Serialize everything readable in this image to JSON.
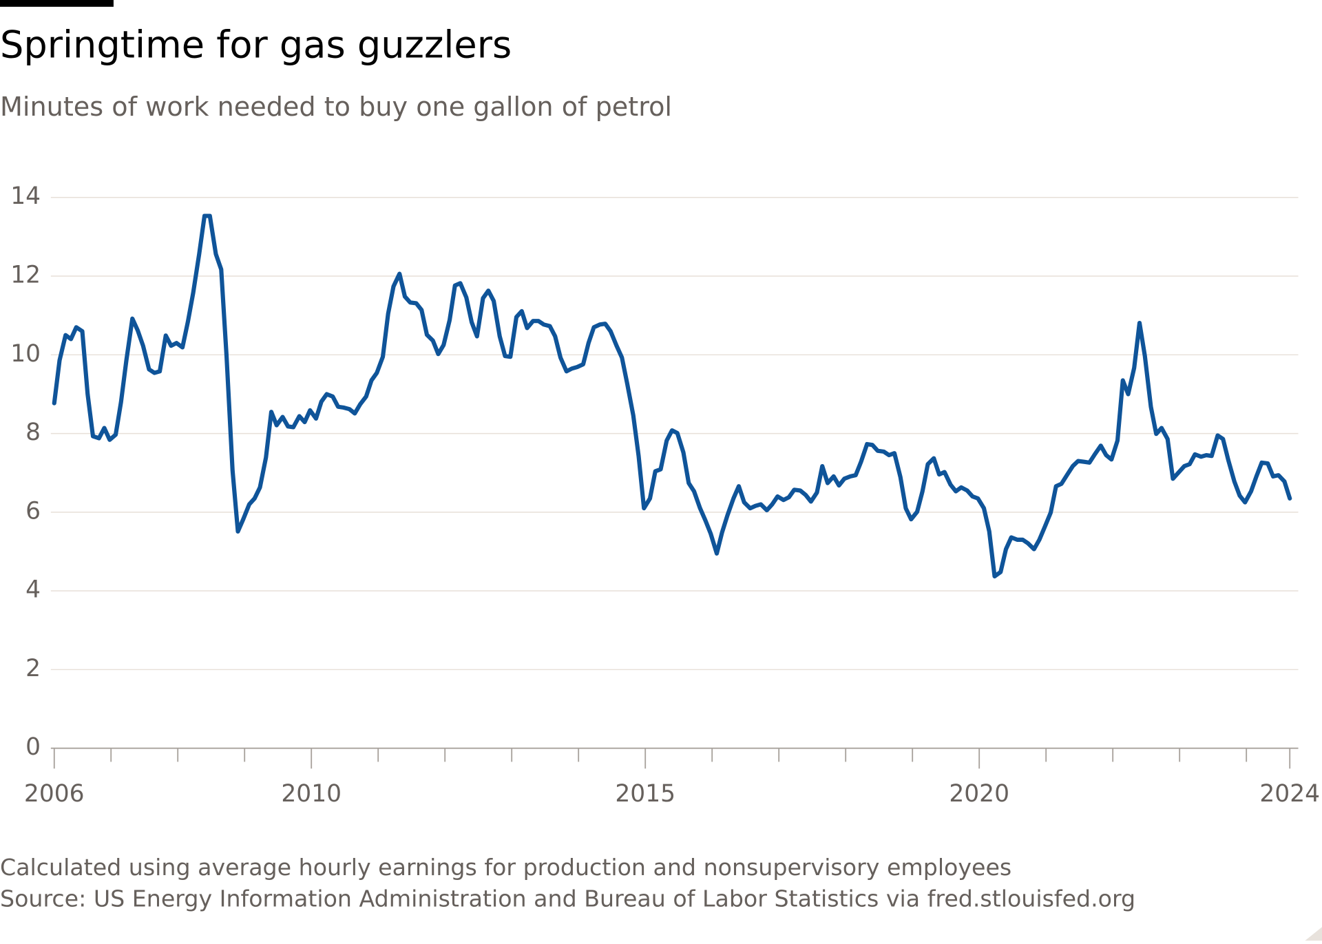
{
  "chart_data": {
    "type": "line",
    "title": "Springtime for gas guzzlers",
    "subtitle": "Minutes of work needed to buy one gallon of petrol",
    "footnote": "Calculated using average hourly earnings for production and nonsupervisory employees",
    "source": "Source: US Energy Information Administration and Bureau of Labor Statistics via fred.stlouisfed.org",
    "xlim": [
      2006.15,
      2024.65
    ],
    "xticks": [
      {
        "value": 2006.15,
        "label": "2006"
      },
      2010,
      2015,
      2020,
      {
        "value": 2024.65,
        "label": "2024"
      }
    ],
    "xminorticks": [
      2007,
      2008,
      2009,
      2011,
      2012,
      2013,
      2014,
      2016,
      2017,
      2018,
      2019,
      2021,
      2022,
      2023,
      2024
    ],
    "ylim": [
      0,
      14
    ],
    "yticks": [
      0,
      2,
      4,
      6,
      8,
      10,
      12,
      14
    ],
    "grid": true,
    "x": [
      2006.15,
      2006.23,
      2006.32,
      2006.4,
      2006.48,
      2006.57,
      2006.65,
      2006.73,
      2006.82,
      2006.9,
      2006.98,
      2007.07,
      2007.15,
      2007.23,
      2007.32,
      2007.4,
      2007.48,
      2007.57,
      2007.65,
      2007.73,
      2007.82,
      2007.9,
      2007.98,
      2008.07,
      2008.15,
      2008.23,
      2008.32,
      2008.4,
      2008.48,
      2008.57,
      2008.65,
      2008.73,
      2008.82,
      2008.9,
      2008.98,
      2009.07,
      2009.15,
      2009.23,
      2009.32,
      2009.4,
      2009.48,
      2009.57,
      2009.65,
      2009.73,
      2009.82,
      2009.9,
      2009.98,
      2010.07,
      2010.15,
      2010.23,
      2010.32,
      2010.4,
      2010.48,
      2010.57,
      2010.65,
      2010.73,
      2010.82,
      2010.9,
      2010.98,
      2011.07,
      2011.15,
      2011.23,
      2011.32,
      2011.4,
      2011.48,
      2011.57,
      2011.65,
      2011.73,
      2011.82,
      2011.9,
      2011.98,
      2012.07,
      2012.15,
      2012.23,
      2012.32,
      2012.4,
      2012.48,
      2012.57,
      2012.65,
      2012.73,
      2012.82,
      2012.9,
      2012.98,
      2013.07,
      2013.15,
      2013.23,
      2013.32,
      2013.4,
      2013.48,
      2013.57,
      2013.65,
      2013.73,
      2013.82,
      2013.9,
      2013.98,
      2014.07,
      2014.15,
      2014.23,
      2014.32,
      2014.4,
      2014.48,
      2014.57,
      2014.65,
      2014.73,
      2014.82,
      2014.9,
      2014.98,
      2015.07,
      2015.15,
      2015.23,
      2015.32,
      2015.4,
      2015.48,
      2015.57,
      2015.65,
      2015.73,
      2015.82,
      2015.9,
      2015.98,
      2016.07,
      2016.15,
      2016.23,
      2016.32,
      2016.4,
      2016.48,
      2016.57,
      2016.65,
      2016.73,
      2016.82,
      2016.9,
      2016.98,
      2017.07,
      2017.15,
      2017.23,
      2017.32,
      2017.4,
      2017.48,
      2017.57,
      2017.65,
      2017.73,
      2017.82,
      2017.9,
      2017.98,
      2018.07,
      2018.15,
      2018.23,
      2018.32,
      2018.4,
      2018.48,
      2018.57,
      2018.65,
      2018.73,
      2018.82,
      2018.9,
      2018.98,
      2019.07,
      2019.15,
      2019.23,
      2019.32,
      2019.4,
      2019.48,
      2019.57,
      2019.65,
      2019.73,
      2019.82,
      2019.9,
      2019.98,
      2020.07,
      2020.15,
      2020.23,
      2020.32,
      2020.4,
      2020.48,
      2020.57,
      2020.65,
      2020.73,
      2020.82,
      2020.9,
      2020.98,
      2021.07,
      2021.15,
      2021.23,
      2021.32,
      2021.4,
      2021.48,
      2021.57,
      2021.65,
      2021.73,
      2021.82,
      2021.9,
      2021.98,
      2022.07,
      2022.15,
      2022.23,
      2022.32,
      2022.4,
      2022.48,
      2022.57,
      2022.65,
      2022.73,
      2022.82,
      2022.9,
      2022.98,
      2023.07,
      2023.15,
      2023.23,
      2023.32,
      2023.4,
      2023.48,
      2023.57,
      2023.65,
      2023.73,
      2023.82,
      2023.9,
      2023.98,
      2024.07,
      2024.15,
      2024.23,
      2024.32,
      2024.4,
      2024.48,
      2024.57,
      2024.65
    ],
    "series": [
      {
        "color": "#0f5499",
        "values": [
          8.77,
          9.86,
          10.5,
          10.4,
          10.7,
          10.6,
          9.0,
          7.93,
          7.88,
          8.14,
          7.84,
          7.97,
          8.8,
          9.86,
          10.92,
          10.62,
          10.23,
          9.63,
          9.54,
          9.58,
          10.49,
          10.23,
          10.3,
          10.19,
          10.83,
          11.57,
          12.56,
          13.53,
          13.53,
          12.56,
          12.17,
          9.97,
          7.06,
          5.51,
          5.82,
          6.2,
          6.35,
          6.63,
          7.39,
          8.55,
          8.21,
          8.42,
          8.18,
          8.16,
          8.44,
          8.29,
          8.59,
          8.38,
          8.81,
          9.0,
          8.94,
          8.68,
          8.66,
          8.62,
          8.51,
          8.74,
          8.94,
          9.35,
          9.54,
          9.95,
          11.05,
          11.74,
          12.06,
          11.48,
          11.33,
          11.31,
          11.14,
          10.51,
          10.36,
          10.02,
          10.25,
          10.88,
          11.76,
          11.82,
          11.46,
          10.83,
          10.47,
          11.44,
          11.63,
          11.37,
          10.47,
          9.97,
          9.95,
          10.96,
          11.11,
          10.68,
          10.86,
          10.86,
          10.77,
          10.73,
          10.47,
          9.93,
          9.58,
          9.65,
          9.69,
          9.76,
          10.3,
          10.7,
          10.77,
          10.79,
          10.6,
          10.23,
          9.93,
          9.26,
          8.46,
          7.43,
          6.1,
          6.35,
          7.04,
          7.09,
          7.82,
          8.08,
          8.01,
          7.52,
          6.74,
          6.53,
          6.1,
          5.79,
          5.45,
          4.95,
          5.49,
          5.92,
          6.35,
          6.66,
          6.25,
          6.1,
          6.16,
          6.2,
          6.05,
          6.2,
          6.4,
          6.31,
          6.38,
          6.57,
          6.55,
          6.44,
          6.27,
          6.5,
          7.17,
          6.74,
          6.91,
          6.68,
          6.85,
          6.91,
          6.94,
          7.28,
          7.73,
          7.71,
          7.56,
          7.54,
          7.45,
          7.5,
          6.89,
          6.1,
          5.82,
          6.01,
          6.53,
          7.22,
          7.37,
          6.96,
          7.02,
          6.7,
          6.53,
          6.63,
          6.55,
          6.4,
          6.35,
          6.1,
          5.51,
          4.37,
          4.48,
          5.06,
          5.36,
          5.3,
          5.3,
          5.21,
          5.06,
          5.3,
          5.62,
          5.99,
          6.66,
          6.72,
          6.96,
          7.17,
          7.3,
          7.28,
          7.26,
          7.47,
          7.69,
          7.45,
          7.34,
          7.82,
          9.35,
          9.0,
          9.67,
          10.81,
          9.97,
          8.68,
          7.99,
          8.14,
          7.86,
          6.85,
          7.0,
          7.17,
          7.22,
          7.47,
          7.41,
          7.45,
          7.43,
          7.95,
          7.86,
          7.32,
          6.78,
          6.42,
          6.25,
          6.53,
          6.91,
          7.26,
          7.24,
          6.91,
          6.94,
          6.78,
          6.35
        ]
      }
    ]
  }
}
